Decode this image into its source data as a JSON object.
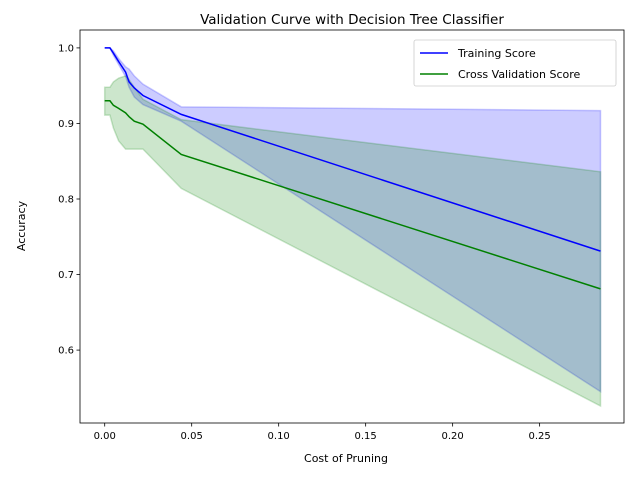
{
  "chart_data": {
    "type": "line",
    "title": "Validation Curve with Decision Tree Classifier",
    "xlabel": "Cost of Pruning",
    "ylabel": "Accuracy",
    "xlim": [
      -0.0142,
      0.2985
    ],
    "ylim": [
      0.5035,
      1.0237
    ],
    "xticks": [
      0.0,
      0.05,
      0.1,
      0.15,
      0.2,
      0.25
    ],
    "xtick_labels": [
      "0.00",
      "0.05",
      "0.10",
      "0.15",
      "0.20",
      "0.25"
    ],
    "yticks": [
      0.6,
      0.7,
      0.8,
      0.9,
      1.0
    ],
    "ytick_labels": [
      "0.6",
      "0.7",
      "0.8",
      "0.9",
      "1.0"
    ],
    "grid": false,
    "legend_position": "top-right",
    "x": [
      0.0,
      0.003,
      0.005,
      0.008,
      0.012,
      0.014,
      0.017,
      0.022,
      0.044,
      0.285
    ],
    "series": [
      {
        "name": "Training Score",
        "color": "#0000ff",
        "band_color": "#0000ff",
        "values": [
          1.0,
          1.0,
          0.993,
          0.982,
          0.968,
          0.955,
          0.947,
          0.937,
          0.912,
          0.731
        ],
        "upper": [
          1.0,
          1.0,
          0.996,
          0.986,
          0.975,
          0.972,
          0.963,
          0.952,
          0.922,
          0.917
        ],
        "lower": [
          1.0,
          1.0,
          0.99,
          0.978,
          0.962,
          0.948,
          0.935,
          0.925,
          0.903,
          0.545
        ]
      },
      {
        "name": "Cross Validation Score",
        "color": "#008000",
        "band_color": "#008000",
        "values": [
          0.93,
          0.93,
          0.924,
          0.92,
          0.914,
          0.909,
          0.903,
          0.899,
          0.859,
          0.681
        ],
        "upper": [
          0.948,
          0.948,
          0.955,
          0.96,
          0.963,
          0.958,
          0.948,
          0.932,
          0.905,
          0.836
        ],
        "lower": [
          0.911,
          0.911,
          0.894,
          0.877,
          0.866,
          0.866,
          0.866,
          0.866,
          0.814,
          0.526
        ]
      }
    ]
  }
}
